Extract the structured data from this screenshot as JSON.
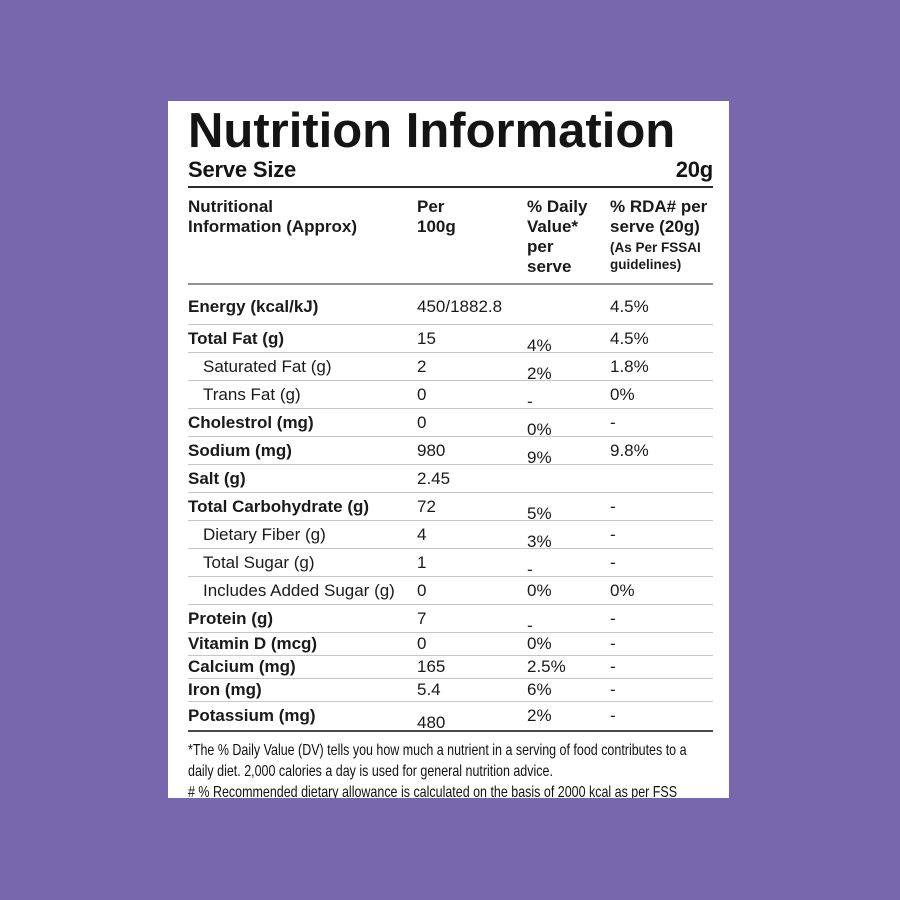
{
  "page": {
    "background_color": "#7967ae",
    "card_color": "#ffffff",
    "text_color": "#1a1a1a"
  },
  "card": {
    "title": "Nutrition Information",
    "serve_size": {
      "label": "Serve Size",
      "value": "20g"
    },
    "table": {
      "columns": {
        "nutrient": "Nutritional\nInformation (Approx)",
        "per_100g": "Per\n100g",
        "daily_value": "% Daily\nValue*\nper\nserve",
        "rda": "% RDA# per\nserve (20g)",
        "rda_note": "(As Per FSSAI\nguidelines)"
      },
      "rows": [
        {
          "nutrient": "Energy (kcal/kJ)",
          "per_100g": "450/1882.8",
          "daily_value": "",
          "rda": "4.5%",
          "sub": false
        },
        {
          "nutrient": "Total Fat (g)",
          "per_100g": "15",
          "daily_value": "4%",
          "rda": "4.5%",
          "sub": false
        },
        {
          "nutrient": "Saturated Fat (g)",
          "per_100g": "2",
          "daily_value": "2%",
          "rda": "1.8%",
          "sub": true
        },
        {
          "nutrient": "Trans Fat (g)",
          "per_100g": "0",
          "daily_value": "-",
          "rda": "0%",
          "sub": true
        },
        {
          "nutrient": "Cholestrol (mg)",
          "per_100g": "0",
          "daily_value": "0%",
          "rda": "-",
          "sub": false
        },
        {
          "nutrient": "Sodium (mg)",
          "per_100g": "980",
          "daily_value": "9%",
          "rda": "9.8%",
          "sub": false
        },
        {
          "nutrient": "Salt (g)",
          "per_100g": "2.45",
          "daily_value": "",
          "rda": "",
          "sub": false
        },
        {
          "nutrient": "Total Carbohydrate (g)",
          "per_100g": "72",
          "daily_value": "5%",
          "rda": "-",
          "sub": false
        },
        {
          "nutrient": "Dietary Fiber (g)",
          "per_100g": "4",
          "daily_value": "3%",
          "rda": "-",
          "sub": true
        },
        {
          "nutrient": "Total Sugar (g)",
          "per_100g": "1",
          "daily_value": "-",
          "rda": "-",
          "sub": true
        },
        {
          "nutrient": "Includes Added Sugar (g)",
          "per_100g": "0",
          "daily_value": "0%",
          "rda": "0%",
          "sub": true
        },
        {
          "nutrient": "Protein (g)",
          "per_100g": "7",
          "daily_value": "-",
          "rda": "-",
          "sub": false
        },
        {
          "nutrient": "Vitamin D (mcg)",
          "per_100g": "0",
          "daily_value": "0%",
          "rda": "-",
          "sub": false
        },
        {
          "nutrient": "Calcium (mg)",
          "per_100g": "165",
          "daily_value": "2.5%",
          "rda": "-",
          "sub": false
        },
        {
          "nutrient": "Iron (mg)",
          "per_100g": "5.4",
          "daily_value": "6%",
          "rda": "-",
          "sub": false
        },
        {
          "nutrient": "Potassium (mg)",
          "per_100g": "480",
          "daily_value": "2%",
          "rda": "-",
          "sub": false
        }
      ]
    },
    "footnotes": [
      "*The % Daily Value (DV) tells you how much a nutrient in a serving of food contributes to a daily diet. 2,000 calories a day is used for general nutrition advice.",
      "# % Recommended dietary allowance  is calculated on the basis of 2000 kcal as per FSS regulation"
    ]
  }
}
